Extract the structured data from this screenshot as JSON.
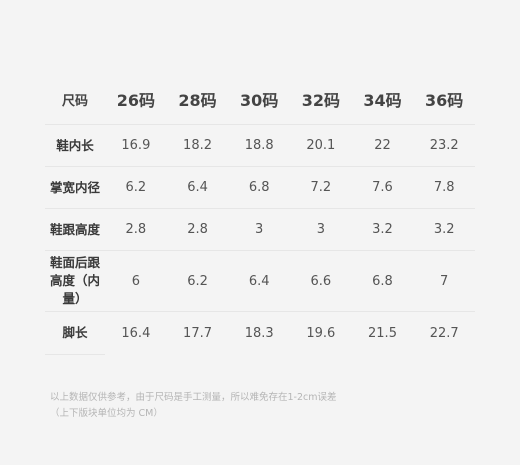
{
  "table": {
    "corner_label": "尺码",
    "sizes": [
      "26码",
      "28码",
      "30码",
      "32码",
      "34码",
      "36码"
    ],
    "rows": [
      {
        "label": "鞋内长",
        "values": [
          "16.9",
          "18.2",
          "18.8",
          "20.1",
          "22",
          "23.2"
        ]
      },
      {
        "label": "掌宽内径",
        "values": [
          "6.2",
          "6.4",
          "6.8",
          "7.2",
          "7.6",
          "7.8"
        ]
      },
      {
        "label": "鞋跟高度",
        "values": [
          "2.8",
          "2.8",
          "3",
          "3",
          "3.2",
          "3.2"
        ]
      },
      {
        "label": "鞋面后跟高度（内量）",
        "values": [
          "6",
          "6.2",
          "6.4",
          "6.6",
          "6.8",
          "7"
        ]
      },
      {
        "label": "脚长",
        "values": [
          "16.4",
          "17.7",
          "18.3",
          "19.6",
          "21.5",
          "22.7"
        ]
      }
    ]
  },
  "footnote": {
    "line1": "以上数据仅供参考，由于尺码是手工测量，所以难免存在1-2cm误差",
    "line2": "（上下版块单位均为 CM）"
  },
  "colors": {
    "background": "#f4f4f4",
    "header_text": "#444444",
    "value_text": "#555555",
    "footnote_text": "#b5b5b5",
    "divider": "#e6e6e6"
  }
}
